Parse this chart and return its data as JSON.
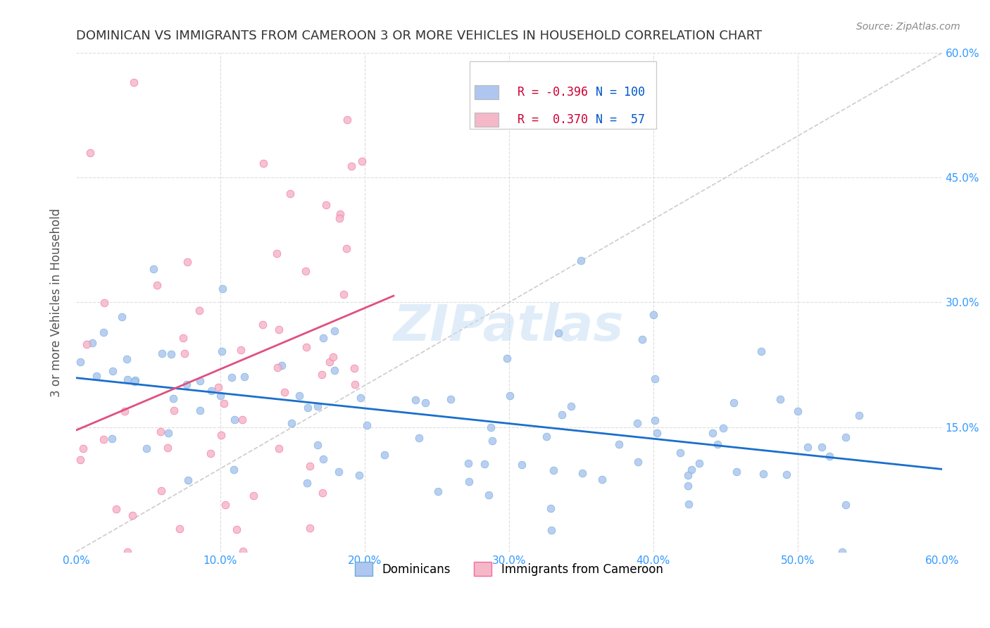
{
  "title": "DOMINICAN VS IMMIGRANTS FROM CAMEROON 3 OR MORE VEHICLES IN HOUSEHOLD CORRELATION CHART",
  "source": "Source: ZipAtlas.com",
  "xlabel_ticks": [
    "0.0%",
    "10.0%",
    "20.0%",
    "30.0%",
    "40.0%",
    "50.0%",
    "60.0%"
  ],
  "ylabel_ticks": [
    "0.0%",
    "15.0%",
    "30.0%",
    "45.0%",
    "60.0%"
  ],
  "ylabel_label": "3 or more Vehicles in Household",
  "xmin": 0.0,
  "xmax": 0.6,
  "ymin": 0.0,
  "ymax": 0.6,
  "watermark": "ZIPatlas",
  "legend_entries": [
    {
      "label": "Dominicans",
      "color": "#aec6f0",
      "R": "-0.396",
      "N": "100"
    },
    {
      "label": "Immigrants from Cameroon",
      "color": "#f4b8c8",
      "R": " 0.370",
      "N": " 57"
    }
  ],
  "dominican_color": "#6baed6",
  "cameroon_color": "#f768a1",
  "dominican_fill": "#aec6f0",
  "cameroon_fill": "#f4b8c8",
  "trendline_dominican": "#1a6fcc",
  "trendline_cameroon": "#e05080",
  "diagonal_color": "#cccccc",
  "grid_color": "#dddddd",
  "title_color": "#333333",
  "axis_label_color": "#555555",
  "tick_color": "#3399ff",
  "right_tick_color": "#3399ff",
  "source_color": "#888888",
  "legend_R_color": "#cc0000",
  "legend_N_color": "#0055cc"
}
